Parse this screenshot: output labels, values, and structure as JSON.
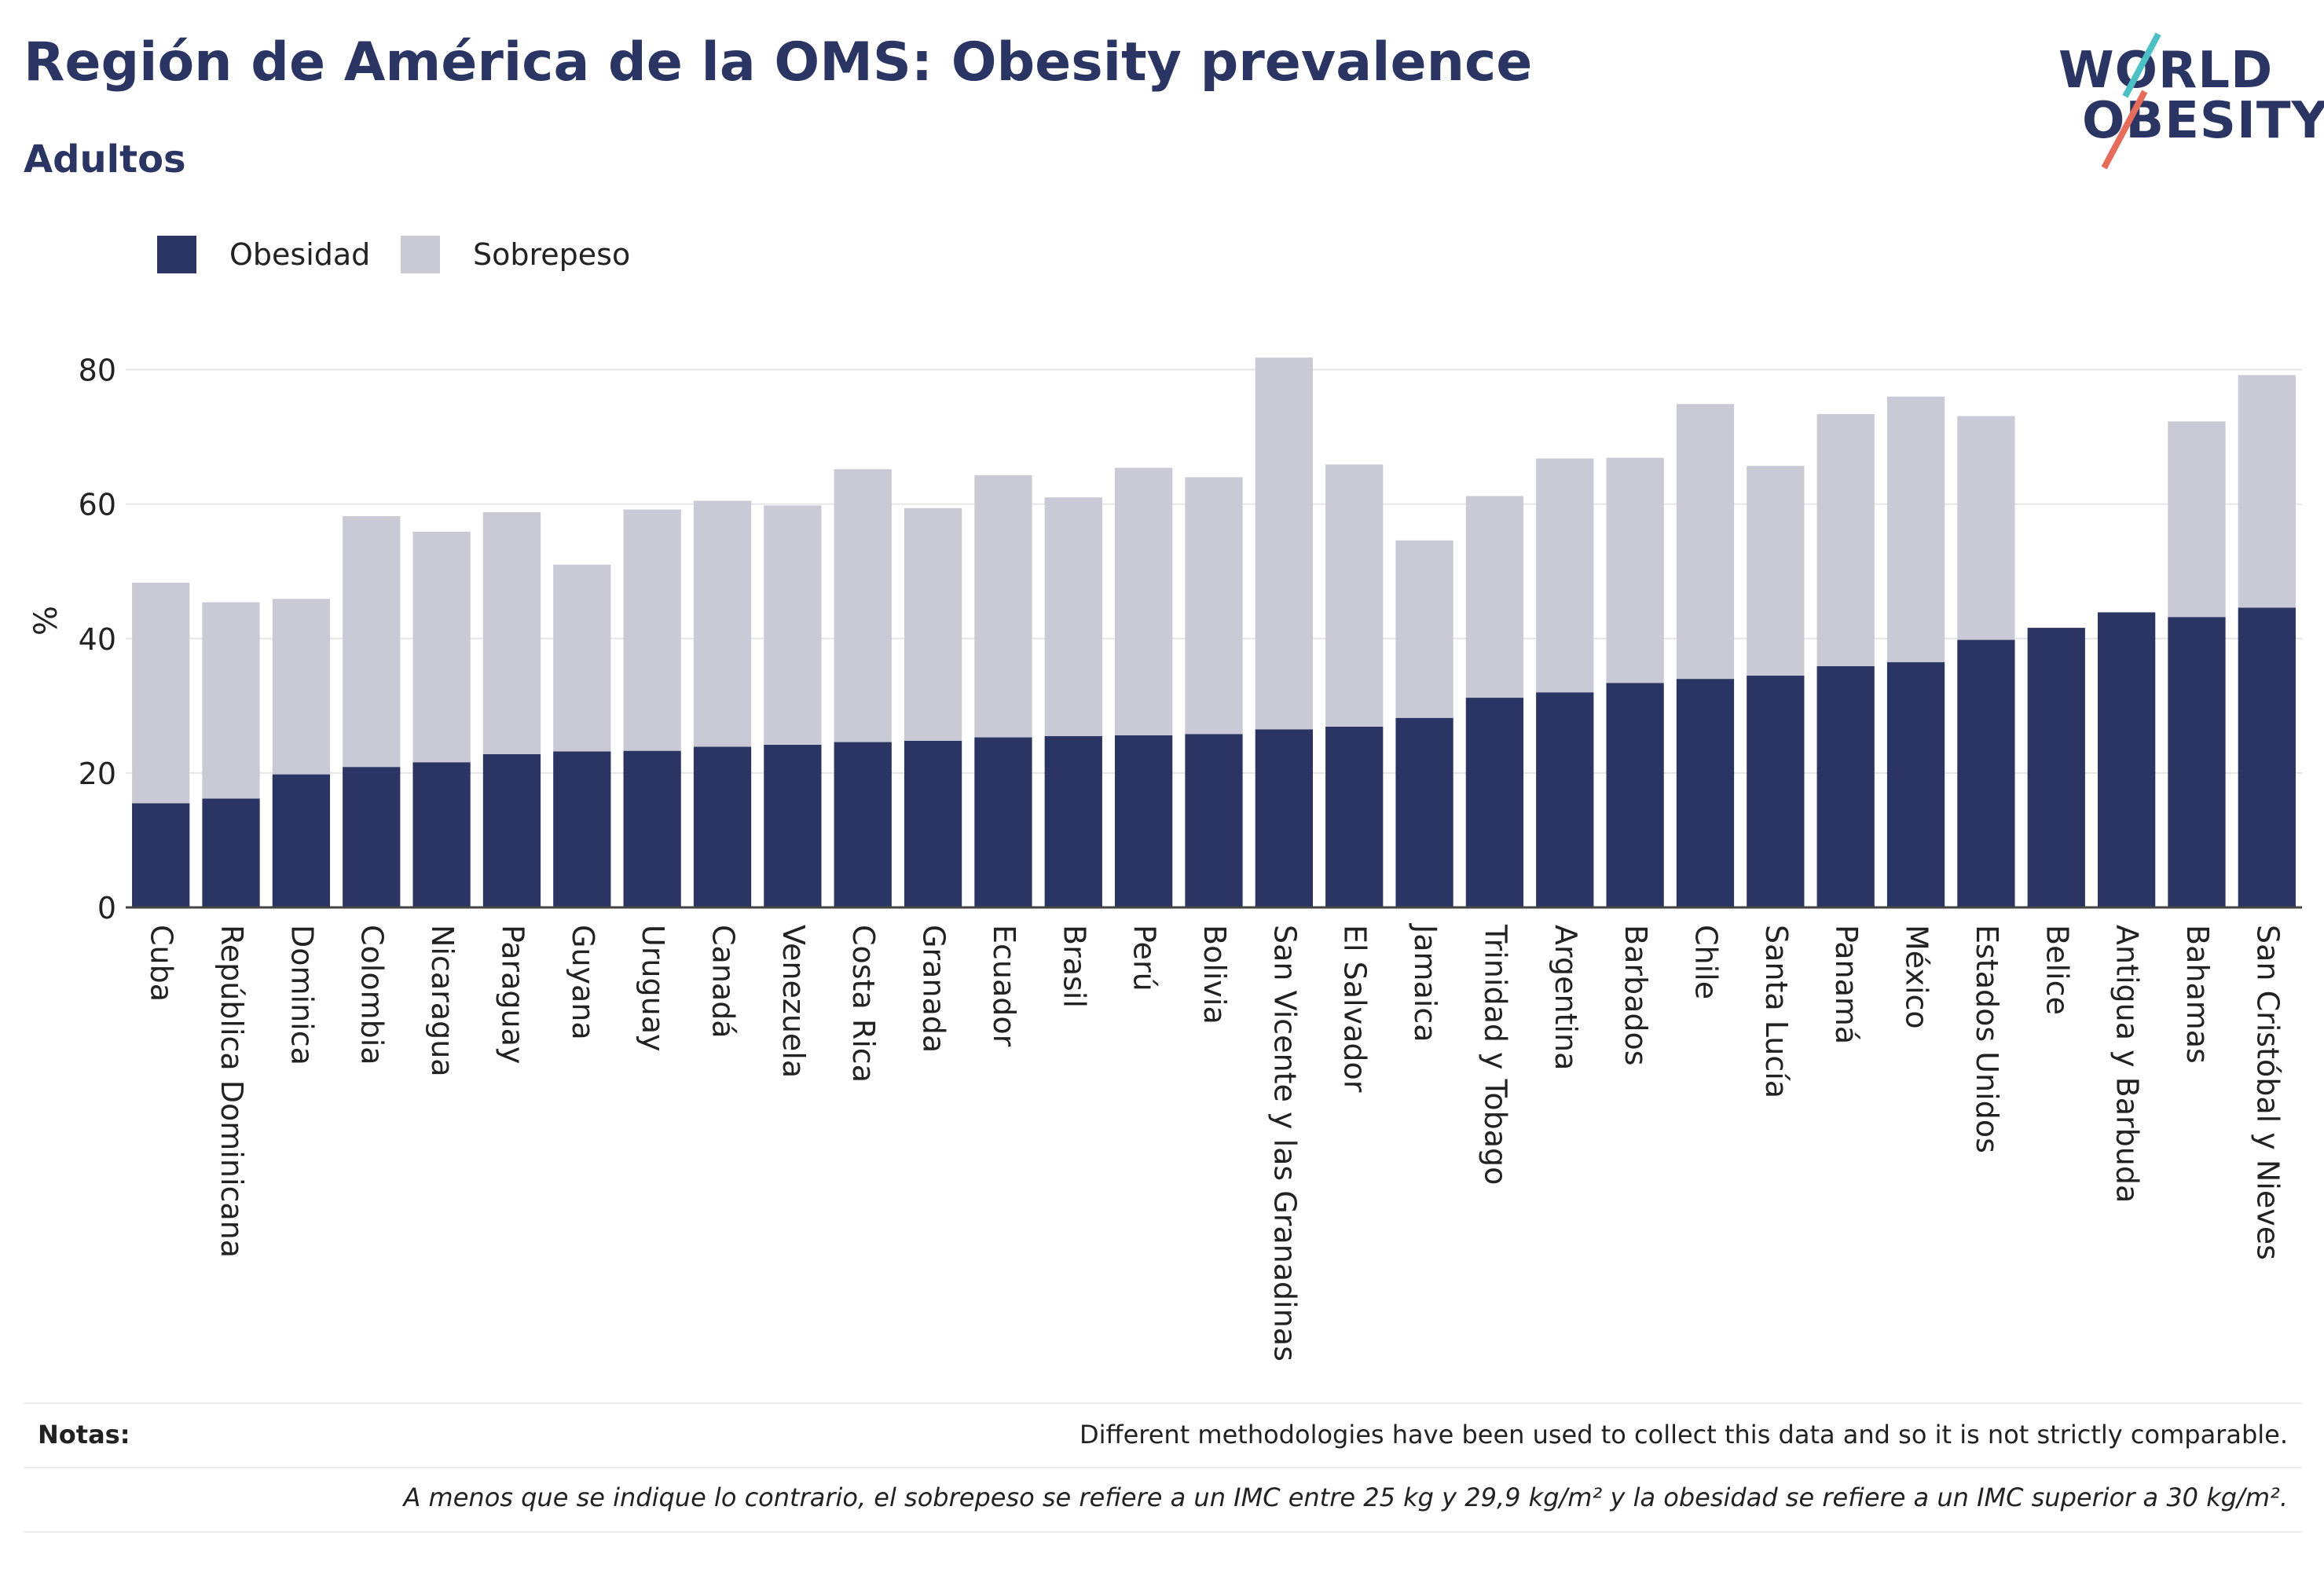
{
  "header": {
    "title": "Región de América de la OMS: Obesity prevalence",
    "subtitle": "Adultos"
  },
  "logo": {
    "line1": "WORLD",
    "line2": "OBESITY"
  },
  "legend": {
    "items": [
      {
        "label": "Obesidad",
        "color": "#2b3563"
      },
      {
        "label": "Sobrepeso",
        "color": "#c9cad6"
      }
    ]
  },
  "notes": {
    "label": "Notas:",
    "text": "Different methodologies have been used to collect this data and so it is not strictly comparable.",
    "definition": "A menos que se indique lo contrario, el sobrepeso se refiere a un IMC entre 25 kg y 29,9 kg/m² y la obesidad se refiere a un IMC superior a 30 kg/m²."
  },
  "chart_data": {
    "type": "bar",
    "stacked": true,
    "categories": [
      "Cuba",
      "República Dominicana",
      "Dominica",
      "Colombia",
      "Nicaragua",
      "Paraguay",
      "Guyana",
      "Uruguay",
      "Canadá",
      "Venezuela",
      "Costa Rica",
      "Granada",
      "Ecuador",
      "Brasil",
      "Perú",
      "Bolivia",
      "San Vicente y las Granadinas",
      "El Salvador",
      "Jamaica",
      "Trinidad y Tobago",
      "Argentina",
      "Barbados",
      "Chile",
      "Santa Lucía",
      "Panamá",
      "México",
      "Estados Unidos",
      "Belice",
      "Antigua y Barbuda",
      "Bahamas",
      "San Cristóbal y Nieves"
    ],
    "series": [
      {
        "name": "Obesidad",
        "color": "#2b3563",
        "values": [
          15.5,
          16.2,
          19.8,
          20.9,
          21.6,
          22.8,
          23.2,
          23.3,
          23.9,
          24.2,
          24.6,
          24.8,
          25.3,
          25.5,
          25.6,
          25.8,
          26.5,
          26.9,
          28.2,
          31.2,
          32.0,
          33.4,
          34.0,
          34.5,
          35.9,
          36.5,
          39.8,
          41.6,
          43.9,
          43.2,
          44.6
        ]
      },
      {
        "name": "Sobrepeso",
        "color": "#c9cad6",
        "values": [
          32.8,
          29.2,
          26.1,
          37.3,
          34.3,
          36.0,
          27.8,
          35.9,
          36.6,
          35.6,
          40.6,
          34.6,
          39.0,
          35.5,
          39.8,
          38.2,
          55.3,
          39.0,
          26.4,
          30.0,
          34.8,
          33.5,
          40.9,
          31.2,
          37.5,
          39.5,
          33.3,
          0,
          0,
          29.1,
          34.6
        ]
      }
    ],
    "ylabel": "%",
    "xlabel": "",
    "ylim": [
      0,
      90
    ],
    "yticks": [
      0,
      20,
      40,
      60,
      80
    ],
    "grid": true,
    "legend_position": "top-left"
  }
}
